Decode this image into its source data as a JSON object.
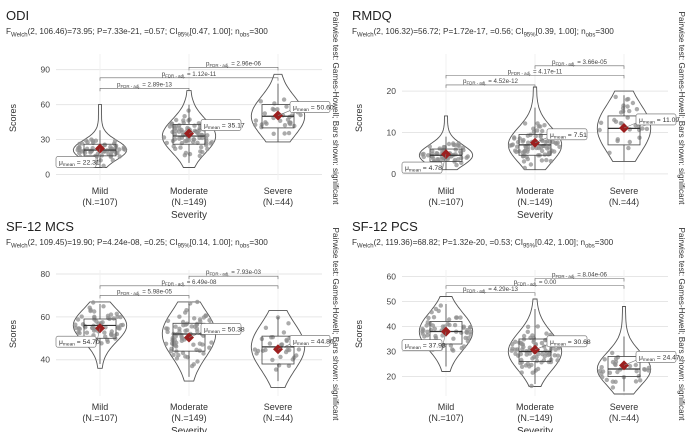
{
  "colors": {
    "point": "#8f8f8f",
    "mean": "#9c1f1f",
    "grid": "#e6e6e6",
    "text": "#333333",
    "violin": "#555555"
  },
  "chart_data": [
    {
      "type": "violin-box",
      "title": "ODI",
      "subtitle": {
        "welch_df": "(2, 106.46)",
        "stat": "=73.95; P=7.33e-21, =0.57; CI",
        "ci_sub": "95%",
        "ci_val": "[0.47, 1.00]; n",
        "n_sub": "obs",
        "n_val": "=300"
      },
      "xlabel": "Severity",
      "ylabel": "Scores",
      "side_note": "Pairwise test: Games-Howell; Bars shown: significant",
      "ylim": [
        -3,
        100
      ],
      "yticks": [
        0,
        30,
        60,
        90
      ],
      "categories": [
        "Mild",
        "Moderate",
        "Severe"
      ],
      "counts": [
        "(N.=107)",
        "(N.=149)",
        "(N.=44)"
      ],
      "means": [
        22.31,
        35.17,
        50.6
      ],
      "mean_labels": [
        "22.31",
        "35.17",
        "50.60"
      ],
      "box": [
        {
          "q1": 16,
          "med": 21,
          "q3": 26,
          "lo": 6,
          "hi": 38
        },
        {
          "q1": 26,
          "med": 33,
          "q3": 43,
          "lo": 10,
          "hi": 60
        },
        {
          "q1": 40,
          "med": 50,
          "q3": 60,
          "lo": 28,
          "hi": 78
        }
      ],
      "violin": [
        [
          6,
          60
        ],
        [
          6,
          72
        ],
        [
          28,
          86
        ]
      ],
      "pairs": [
        {
          "from": 0,
          "to": 1,
          "label": "2.89e-13",
          "y": 74
        },
        {
          "from": 0,
          "to": 2,
          "label": "1.12e-11",
          "y": 83
        },
        {
          "from": 1,
          "to": 2,
          "label": "2.96e-06",
          "y": 92
        }
      ]
    },
    {
      "type": "violin-box",
      "title": "RMDQ",
      "subtitle": {
        "welch_df": "(2, 106.32)",
        "stat": "=56.72; P=1.72e-17, =0.56; CI",
        "ci_sub": "95%",
        "ci_val": "[0.39, 1.00]; n",
        "n_sub": "obs",
        "n_val": "=300"
      },
      "xlabel": "Severity",
      "ylabel": "Scores",
      "side_note": "Pairwise test: Games-Howell; Bars shown: significant",
      "ylim": [
        -1,
        28
      ],
      "yticks": [
        0,
        10,
        20
      ],
      "categories": [
        "Mild",
        "Moderate",
        "Severe"
      ],
      "counts": [
        "(N.=107)",
        "(N.=149)",
        "(N.=44)"
      ],
      "means": [
        4.78,
        7.51,
        11.09
      ],
      "mean_labels": [
        "4.78",
        "7.51",
        "11.09"
      ],
      "box": [
        {
          "q1": 3,
          "med": 4.5,
          "q3": 6,
          "lo": 1,
          "hi": 9
        },
        {
          "q1": 4.5,
          "med": 7,
          "q3": 9.5,
          "lo": 1,
          "hi": 16
        },
        {
          "q1": 7,
          "med": 11,
          "q3": 14,
          "lo": 3,
          "hi": 19
        }
      ],
      "violin": [
        [
          1,
          14
        ],
        [
          1,
          21
        ],
        [
          3,
          20
        ]
      ],
      "pairs": [
        {
          "from": 0,
          "to": 1,
          "label": "4.52e-12",
          "y": 21.5
        },
        {
          "from": 0,
          "to": 2,
          "label": "4.17e-11",
          "y": 23.8
        },
        {
          "from": 1,
          "to": 2,
          "label": "3.66e-05",
          "y": 26.1
        }
      ]
    },
    {
      "type": "violin-box",
      "title": "SF-12 MCS",
      "subtitle": {
        "welch_df": "(2, 109.45)",
        "stat": "=19.90; P=4.24e-08, =0.25; CI",
        "ci_sub": "95%",
        "ci_val": "[0.14, 1.00]; n",
        "n_sub": "obs",
        "n_val": "=300"
      },
      "xlabel": "Severity",
      "ylabel": "Scores",
      "side_note": "Pairwise test: Games-Howell; Bars shown: significant",
      "ylim": [
        24,
        80
      ],
      "yticks": [
        40,
        60,
        80
      ],
      "categories": [
        "Mild",
        "Moderate",
        "Severe"
      ],
      "counts": [
        "(N.=107)",
        "(N.=149)",
        "(N.=44)"
      ],
      "means": [
        54.7,
        50.38,
        44.86
      ],
      "mean_labels": [
        "54.70",
        "50.38",
        "44.86"
      ],
      "box": [
        {
          "q1": 50,
          "med": 56,
          "q3": 59,
          "lo": 38,
          "hi": 66
        },
        {
          "q1": 44,
          "med": 52,
          "q3": 57,
          "lo": 32,
          "hi": 66
        },
        {
          "q1": 38,
          "med": 46,
          "q3": 51,
          "lo": 30,
          "hi": 60
        }
      ],
      "violin": [
        [
          36,
          67
        ],
        [
          30,
          67
        ],
        [
          27,
          63
        ]
      ],
      "pairs": [
        {
          "from": 0,
          "to": 1,
          "label": "5.98e-05",
          "y": 70
        },
        {
          "from": 0,
          "to": 2,
          "label": "6.49e-08",
          "y": 74.5
        },
        {
          "from": 1,
          "to": 2,
          "label": "7.93e-03",
          "y": 79
        }
      ]
    },
    {
      "type": "violin-box",
      "title": "SF-12 PCS",
      "subtitle": {
        "welch_df": "(2, 119.36)",
        "stat": "=68.82; P=1.32e-20, =0.53; CI",
        "ci_sub": "95%",
        "ci_val": "[0.42, 1.00]; n",
        "n_sub": "obs",
        "n_val": "=300"
      },
      "xlabel": "Severity",
      "ylabel": "Scores",
      "side_note": "Pairwise test: Games-Howell; Bars shown: significant",
      "ylim": [
        13,
        61
      ],
      "yticks": [
        20,
        30,
        40,
        50,
        60
      ],
      "categories": [
        "Mild",
        "Moderate",
        "Severe"
      ],
      "counts": [
        "(N.=107)",
        "(N.=149)",
        "(N.=44)"
      ],
      "means": [
        37.93,
        30.68,
        24.47
      ],
      "mean_labels": [
        "37.93",
        "30.68",
        "24.47"
      ],
      "box": [
        {
          "q1": 33,
          "med": 38,
          "q3": 42,
          "lo": 24,
          "hi": 49
        },
        {
          "q1": 26,
          "med": 30,
          "q3": 35,
          "lo": 17,
          "hi": 47
        },
        {
          "q1": 20,
          "med": 23,
          "q3": 28,
          "lo": 14,
          "hi": 36
        }
      ],
      "violin": [
        [
          22,
          52
        ],
        [
          16,
          51
        ],
        [
          13,
          48
        ]
      ],
      "pairs": [
        {
          "from": 0,
          "to": 1,
          "label": "4.29e-13",
          "y": 53.5
        },
        {
          "from": 0,
          "to": 2,
          "label": "0.00",
          "y": 56.3
        },
        {
          "from": 1,
          "to": 2,
          "label": "8.04e-06",
          "y": 59.2
        }
      ]
    }
  ]
}
